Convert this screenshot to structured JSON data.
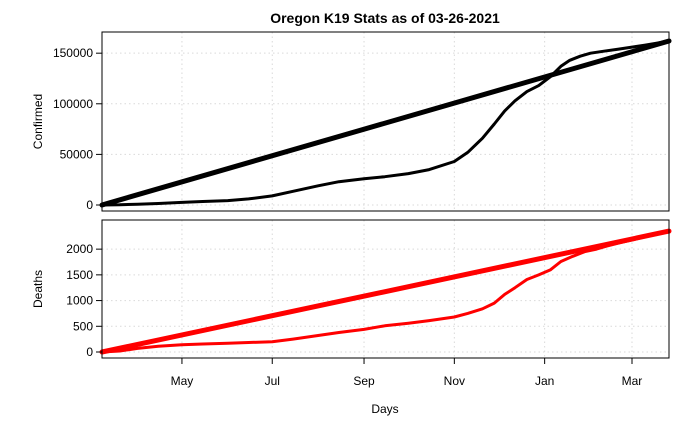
{
  "chart_data": {
    "title": "Oregon K19 Stats as of 03-26-2021",
    "xlabel": "Days",
    "x_tick_labels": [
      "May",
      "Jul",
      "Sep",
      "Nov",
      "Jan",
      "Mar"
    ],
    "x_tick_dates": [
      "2020-05-01",
      "2020-07-01",
      "2020-09-01",
      "2020-11-01",
      "2021-01-01",
      "2021-03-01"
    ],
    "x_range": [
      "2020-03-08",
      "2021-03-26"
    ],
    "grid": true,
    "panels": [
      {
        "type": "line",
        "ylabel": "Confirmed",
        "ylim": [
          0,
          165000
        ],
        "yticks": [
          0,
          50000,
          100000,
          150000
        ],
        "color": "#000000",
        "series": [
          {
            "line_width": 3,
            "x": [
              "2020-03-08",
              "2020-03-20",
              "2020-04-01",
              "2020-04-15",
              "2020-05-01",
              "2020-05-15",
              "2020-06-01",
              "2020-06-15",
              "2020-07-01",
              "2020-07-15",
              "2020-08-01",
              "2020-08-15",
              "2020-09-01",
              "2020-09-15",
              "2020-10-01",
              "2020-10-15",
              "2020-11-01",
              "2020-11-10",
              "2020-11-20",
              "2020-11-28",
              "2020-12-05",
              "2020-12-12",
              "2020-12-20",
              "2020-12-28",
              "2021-01-05",
              "2021-01-12",
              "2021-01-18",
              "2021-01-25",
              "2021-02-01",
              "2021-02-10",
              "2021-02-20",
              "2021-03-01",
              "2021-03-10",
              "2021-03-18",
              "2021-03-26"
            ],
            "values": [
              0,
              200,
              800,
              1500,
              2600,
              3500,
              4300,
              6000,
              9000,
              13500,
              19000,
              23000,
              26000,
              28000,
              31000,
              35000,
              43000,
              52000,
              66000,
              80000,
              93000,
              103000,
              112000,
              118000,
              127000,
              137000,
              143000,
              147000,
              150000,
              152000,
              154000,
              156000,
              158000,
              160000,
              162000
            ]
          },
          {
            "line_width": 5,
            "x": [
              "2020-03-08",
              "2021-03-26"
            ],
            "values": [
              0,
              162000
            ]
          }
        ]
      },
      {
        "type": "line",
        "ylabel": "Deaths",
        "ylim": [
          0,
          2450
        ],
        "yticks": [
          0,
          500,
          1000,
          1500,
          2000
        ],
        "color": "#ff0000",
        "series": [
          {
            "line_width": 3,
            "x": [
              "2020-03-08",
              "2020-03-20",
              "2020-04-01",
              "2020-04-15",
              "2020-05-01",
              "2020-05-15",
              "2020-06-01",
              "2020-06-15",
              "2020-07-01",
              "2020-07-15",
              "2020-08-01",
              "2020-08-15",
              "2020-09-01",
              "2020-09-15",
              "2020-10-01",
              "2020-10-15",
              "2020-11-01",
              "2020-11-10",
              "2020-11-20",
              "2020-11-28",
              "2020-12-05",
              "2020-12-12",
              "2020-12-20",
              "2020-12-28",
              "2021-01-05",
              "2021-01-12",
              "2021-01-20",
              "2021-01-28",
              "2021-02-05",
              "2021-02-12",
              "2021-02-20",
              "2021-03-01",
              "2021-03-10",
              "2021-03-18",
              "2021-03-26"
            ],
            "values": [
              0,
              20,
              70,
              110,
              140,
              155,
              170,
              185,
              200,
              250,
              320,
              380,
              440,
              510,
              560,
              610,
              680,
              750,
              840,
              950,
              1120,
              1250,
              1410,
              1500,
              1600,
              1760,
              1860,
              1950,
              2000,
              2060,
              2120,
              2180,
              2240,
              2300,
              2350
            ]
          },
          {
            "line_width": 5,
            "x": [
              "2020-03-08",
              "2021-03-26"
            ],
            "values": [
              0,
              2350
            ]
          }
        ]
      }
    ]
  }
}
